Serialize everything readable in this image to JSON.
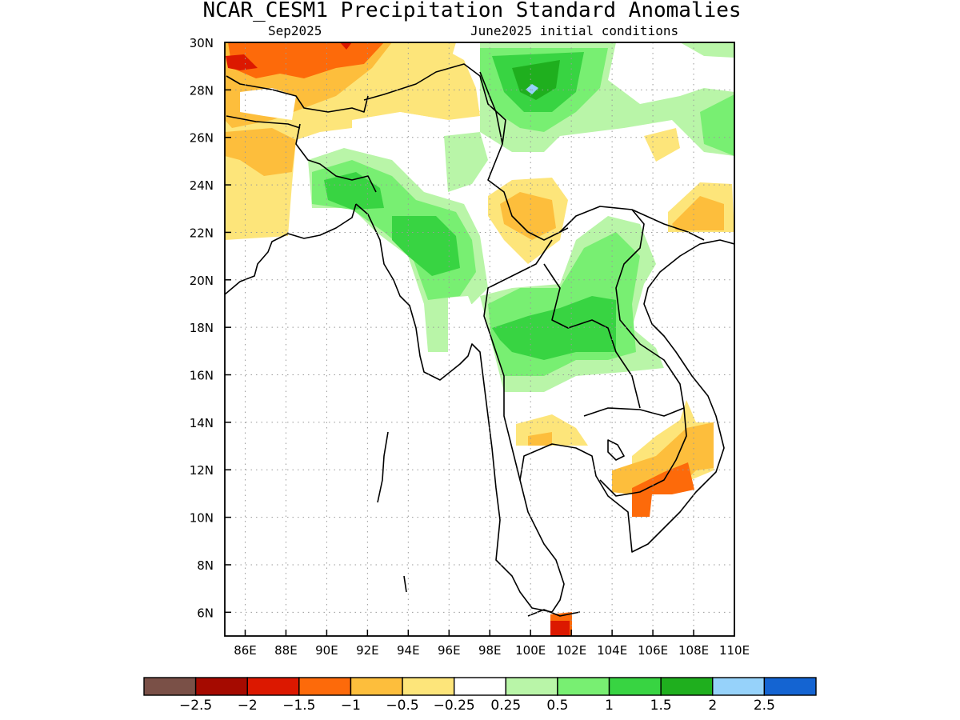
{
  "title": "NCAR_CESM1 Precipitation Standard Anomalies",
  "subtitle_left": "Sep2025",
  "subtitle_right": "June2025 initial conditions",
  "map": {
    "lon_range": [
      85,
      110
    ],
    "lat_range": [
      5,
      30
    ],
    "x_ticks": [
      "86E",
      "88E",
      "90E",
      "92E",
      "94E",
      "96E",
      "98E",
      "100E",
      "102E",
      "104E",
      "106E",
      "108E",
      "110E"
    ],
    "y_ticks": [
      "6N",
      "8N",
      "10N",
      "12N",
      "14N",
      "16N",
      "18N",
      "20N",
      "22N",
      "24N",
      "26N",
      "28N",
      "30N"
    ],
    "grid": "dotted",
    "regions": [
      {
        "category": "-1.5",
        "lon": 89,
        "lat": 29.3
      },
      {
        "category": "-1",
        "lon": 90.5,
        "lat": 29.0
      },
      {
        "category": "-0.5",
        "lon": 87.0,
        "lat": 25.0
      },
      {
        "category": "1",
        "lon": 95.0,
        "lat": 21.5
      },
      {
        "category": "1.5",
        "lon": 95.5,
        "lat": 20.8
      },
      {
        "category": "1.5",
        "lon": 100.5,
        "lat": 28.3
      },
      {
        "category": "2",
        "lon": 100.2,
        "lat": 28.0
      },
      {
        "category": "1.5",
        "lon": 103.0,
        "lat": 17.8
      },
      {
        "category": "-0.5",
        "lon": 100.5,
        "lat": 22.5
      },
      {
        "category": "-1",
        "lon": 106.5,
        "lat": 11.5
      },
      {
        "category": "-1.5",
        "lon": 101.5,
        "lat": 5.5
      }
    ]
  },
  "colorbar": {
    "labels": [
      "−2.5",
      "−2",
      "−1.5",
      "−1",
      "−0.5",
      "−0.25",
      "0.25",
      "0.5",
      "1",
      "1.5",
      "2",
      "2.5"
    ],
    "colors": [
      "#7a5047",
      "#a50a00",
      "#dc1800",
      "#fd6a0a",
      "#fdbe3c",
      "#fde57a",
      "#ffffff",
      "#b9f5a8",
      "#78ef72",
      "#38d442",
      "#1faf1e",
      "#96d2fa",
      "#1464d2"
    ]
  }
}
